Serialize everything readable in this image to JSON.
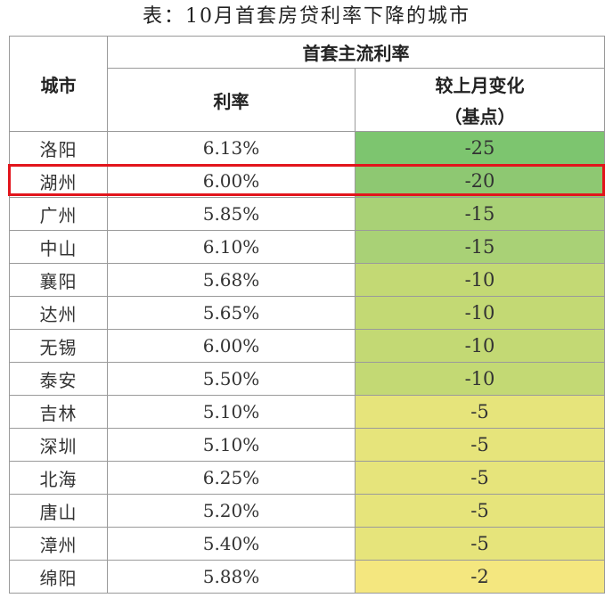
{
  "title": "表：10月首套房贷利率下降的城市",
  "headers": {
    "city": "城市",
    "group": "首套主流利率",
    "rate": "利率",
    "change_line1": "较上月变化",
    "change_line2": "（基点）"
  },
  "colors": {
    "change_-25": "#7dc56f",
    "change_-20": "#8ec872",
    "change_-15": "#a9d176",
    "change_-10": "#c3d974",
    "change_-5": "#e6e47b",
    "change_-2": "#f4e77f",
    "highlight_border": "#e2151c"
  },
  "highlighted_row": "湖州",
  "chart_data": {
    "type": "table",
    "title": "表：10月首套房贷利率下降的城市",
    "columns": [
      "城市",
      "利率",
      "较上月变化（基点）"
    ],
    "rows": [
      {
        "city": "洛阳",
        "rate": "6.13%",
        "change": "-25"
      },
      {
        "city": "湖州",
        "rate": "6.00%",
        "change": "-20"
      },
      {
        "city": "广州",
        "rate": "5.85%",
        "change": "-15"
      },
      {
        "city": "中山",
        "rate": "6.10%",
        "change": "-15"
      },
      {
        "city": "襄阳",
        "rate": "5.68%",
        "change": "-10"
      },
      {
        "city": "达州",
        "rate": "5.65%",
        "change": "-10"
      },
      {
        "city": "无锡",
        "rate": "6.00%",
        "change": "-10"
      },
      {
        "city": "泰安",
        "rate": "5.50%",
        "change": "-10"
      },
      {
        "city": "吉林",
        "rate": "5.10%",
        "change": "-5"
      },
      {
        "city": "深圳",
        "rate": "5.10%",
        "change": "-5"
      },
      {
        "city": "北海",
        "rate": "6.25%",
        "change": "-5"
      },
      {
        "city": "唐山",
        "rate": "5.20%",
        "change": "-5"
      },
      {
        "city": "漳州",
        "rate": "5.40%",
        "change": "-5"
      },
      {
        "city": "绵阳",
        "rate": "5.88%",
        "change": "-2"
      }
    ]
  }
}
